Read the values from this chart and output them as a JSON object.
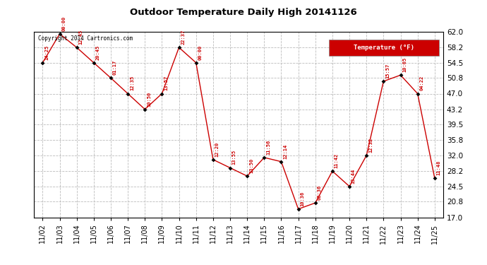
{
  "title": "Outdoor Temperature Daily High 20141126",
  "copyright": "Copyright 2014 Cartronics.com",
  "legend_label": "Temperature (°F)",
  "dates": [
    "11/02",
    "11/03",
    "11/04",
    "11/05",
    "11/06",
    "11/07",
    "11/08",
    "11/09",
    "11/10",
    "11/11",
    "11/12",
    "11/13",
    "11/14",
    "11/15",
    "11/16",
    "11/17",
    "11/18",
    "11/19",
    "11/20",
    "11/21",
    "11/22",
    "11/23",
    "11/24",
    "11/25"
  ],
  "temps": [
    54.5,
    61.5,
    58.2,
    54.5,
    50.8,
    47.0,
    43.2,
    47.0,
    58.2,
    54.5,
    31.0,
    29.0,
    27.0,
    31.5,
    30.5,
    19.0,
    20.5,
    28.2,
    24.5,
    32.0,
    50.0,
    51.5,
    47.0,
    26.5
  ],
  "labels": [
    "14:25",
    "00:00",
    "12:45",
    "20:45",
    "01:17",
    "12:35",
    "10:50",
    "13:57",
    "22:37",
    "00:00",
    "12:20",
    "13:55",
    "13:50",
    "11:56",
    "12:14",
    "10:36",
    "08:36",
    "11:42",
    "13:44",
    "12:32",
    "15:57",
    "10:05",
    "04:22",
    "11:48"
  ],
  "ylim_min": 17.0,
  "ylim_max": 62.0,
  "yticks": [
    17.0,
    20.8,
    24.5,
    28.2,
    32.0,
    35.8,
    39.5,
    43.2,
    47.0,
    50.8,
    54.5,
    58.2,
    62.0
  ],
  "line_color": "#cc0000",
  "marker_color": "#000000",
  "label_color": "#cc0000",
  "bg_color": "#ffffff",
  "grid_color": "#bbbbbb",
  "title_color": "#000000",
  "copyright_color": "#000000",
  "legend_bg": "#cc0000",
  "legend_text_color": "#ffffff"
}
